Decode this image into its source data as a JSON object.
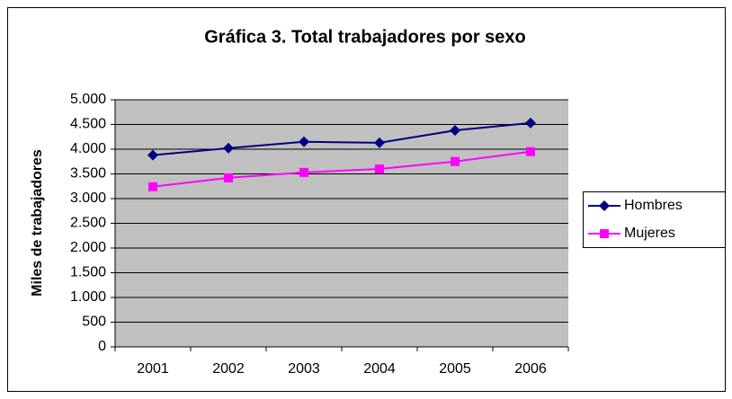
{
  "chart_data": {
    "type": "line",
    "title": "Gráfica 3. Total trabajadores por sexo",
    "y_label": "Miles de trabajadores",
    "categories": [
      "2001",
      "2002",
      "2003",
      "2004",
      "2005",
      "2006"
    ],
    "series": [
      {
        "name": "Hombres",
        "color": "#000080",
        "marker": "diamond",
        "values": [
          3880,
          4020,
          4150,
          4130,
          4380,
          4530
        ]
      },
      {
        "name": "Mujeres",
        "color": "#ff00ff",
        "marker": "square",
        "values": [
          3240,
          3420,
          3530,
          3600,
          3750,
          3950
        ]
      }
    ],
    "ylim": [
      0,
      5000
    ],
    "yticks": [
      0,
      500,
      {
        "value": 1000,
        "label": "1.000"
      },
      {
        "value": 1500,
        "label": "1.500"
      },
      {
        "value": 2000,
        "label": "2.000"
      },
      {
        "value": 2500,
        "label": "2.500"
      },
      {
        "value": 3000,
        "label": "3.000"
      },
      {
        "value": 3500,
        "label": "3.500"
      },
      {
        "value": 4000,
        "label": "4.000"
      },
      {
        "value": 4500,
        "label": "4.500"
      },
      {
        "value": 5000,
        "label": "5.000"
      }
    ],
    "grid": true,
    "legend": "right"
  }
}
